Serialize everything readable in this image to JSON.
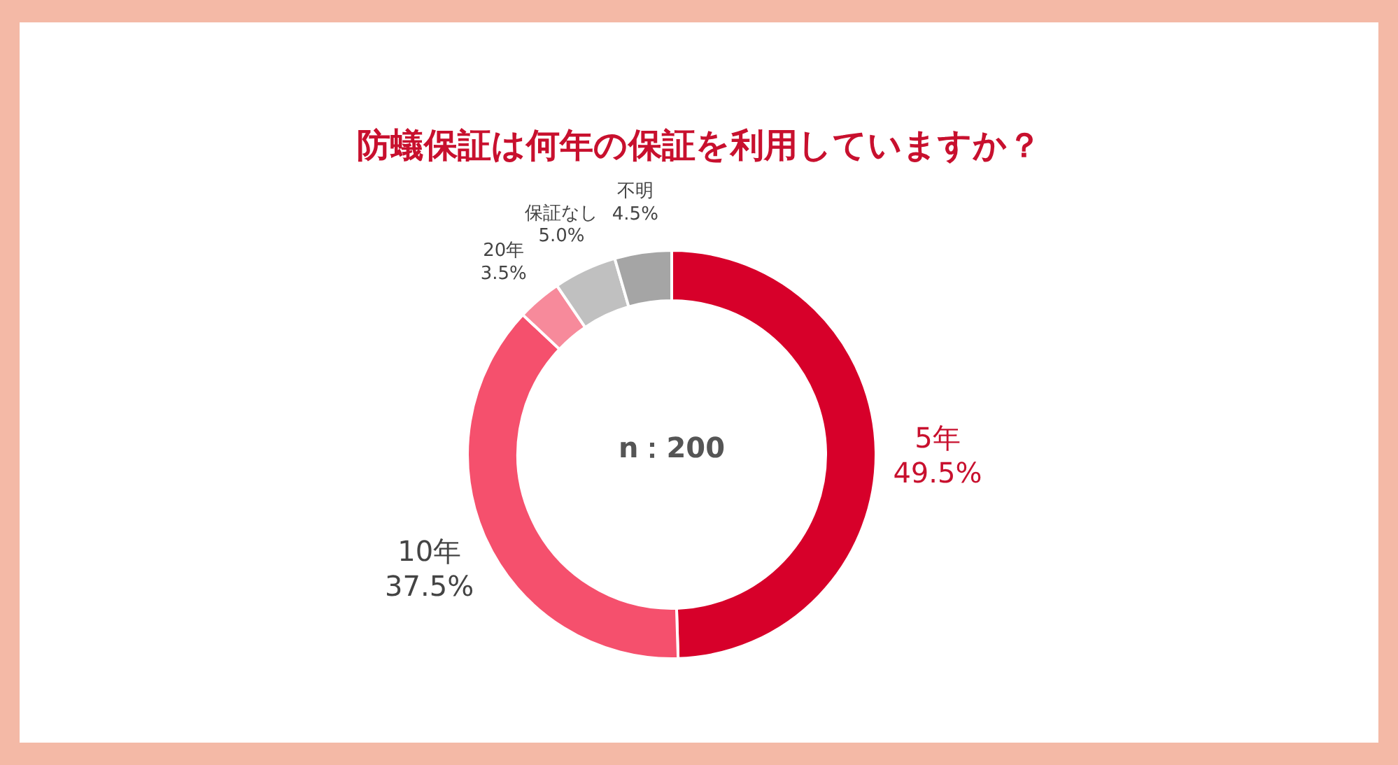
{
  "chart_data": {
    "type": "donut",
    "title": "防蟻保証は何年の保証を利用していますか？",
    "categories": [
      "5年",
      "10年",
      "20年",
      "保証なし",
      "不明"
    ],
    "values": [
      49.5,
      37.5,
      3.5,
      5.0,
      4.5
    ],
    "value_labels": [
      "49.5%",
      "37.5%",
      "3.5%",
      "5.0%",
      "4.5%"
    ],
    "colors": [
      "#d7002a",
      "#f5506d",
      "#f78a9b",
      "#c0c0c0",
      "#a5a5a5"
    ],
    "annotations": [
      "n：200"
    ]
  }
}
